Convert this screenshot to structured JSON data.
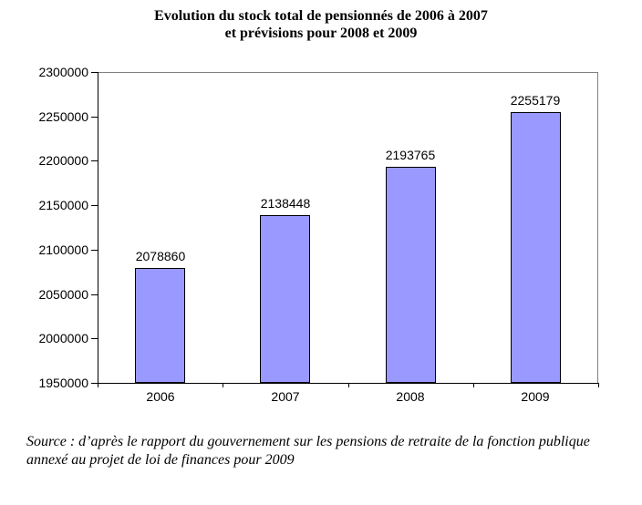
{
  "title": {
    "line1": "Evolution du stock total de pensionnés de 2006 à 2007",
    "line2": "et prévisions pour 2008 et 2009"
  },
  "chart_data": {
    "type": "bar",
    "categories": [
      "2006",
      "2007",
      "2008",
      "2009"
    ],
    "values": [
      2078860,
      2138448,
      2193765,
      2255179
    ],
    "data_labels": [
      "2078860",
      "2138448",
      "2193765",
      "2255179"
    ],
    "title": "Evolution du stock total de pensionnés de 2006 à 2007 et prévisions pour 2008 et 2009",
    "xlabel": "",
    "ylabel": "",
    "ylim": [
      1950000,
      2300000
    ],
    "ytick_step": 50000,
    "ytick_labels": [
      "1950000",
      "2000000",
      "2050000",
      "2100000",
      "2150000",
      "2200000",
      "2250000",
      "2300000"
    ],
    "grid": "off",
    "legend": "none",
    "bar_color": "#9999ff",
    "bar_border_color": "#000000",
    "frame_color": "#808080",
    "axis_color": "#000000",
    "text_color": "#000000",
    "background_color": "#ffffff"
  },
  "source": {
    "line1": "Source : d’après le rapport du gouvernement sur les pensions de retraite de la fonction publique",
    "line2": "annexé au projet de loi de finances pour 2009"
  }
}
